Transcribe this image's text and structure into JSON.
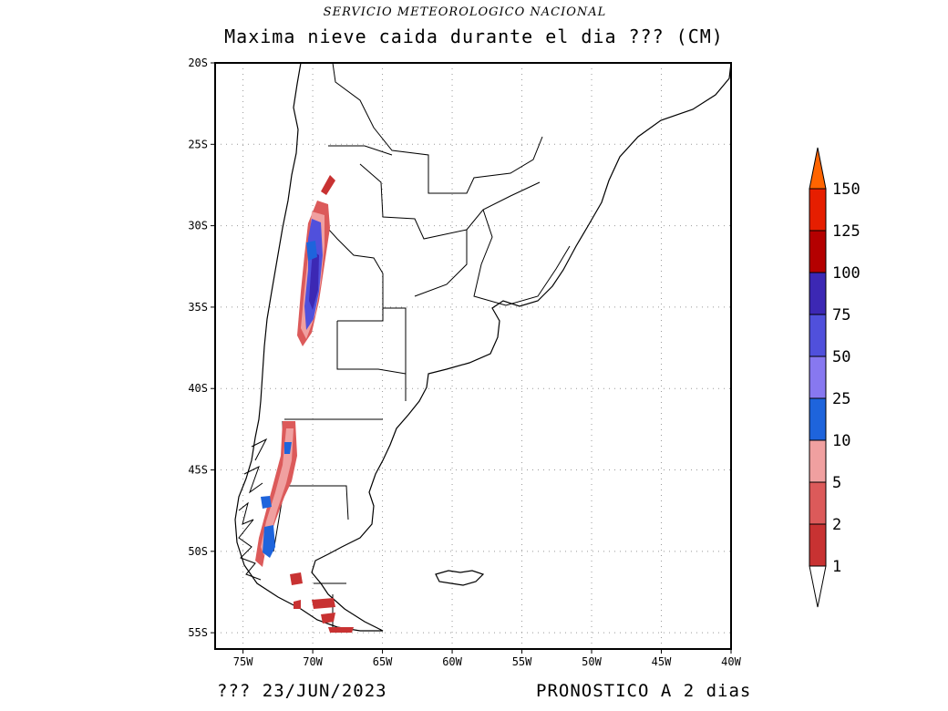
{
  "header": {
    "agency": "SERVICIO METEOROLOGICO NACIONAL",
    "title": "Maxima nieve caida durante el dia ??? (CM)"
  },
  "footer": {
    "left": "???  23/JUN/2023",
    "right": "PRONOSTICO A 2 dias"
  },
  "map": {
    "lat_labels": [
      "20S",
      "25S",
      "30S",
      "35S",
      "40S",
      "45S",
      "50S",
      "55S"
    ],
    "lon_labels": [
      "75W",
      "70W",
      "65W",
      "60W",
      "55W",
      "50W",
      "45W",
      "40W"
    ],
    "lat_range": [
      -56,
      -20
    ],
    "lon_range": [
      -77,
      -40
    ],
    "grid": "dotted"
  },
  "legend": {
    "colors": [
      "#c83232",
      "#dc5a5a",
      "#f0a0a0",
      "#1e64dc",
      "#8778f0",
      "#5050dc",
      "#3c28b4",
      "#b40000",
      "#e61e00",
      "#ff6400"
    ],
    "labels": [
      "1",
      "2",
      "5",
      "10",
      "25",
      "50",
      "75",
      "100",
      "125",
      "150"
    ]
  }
}
